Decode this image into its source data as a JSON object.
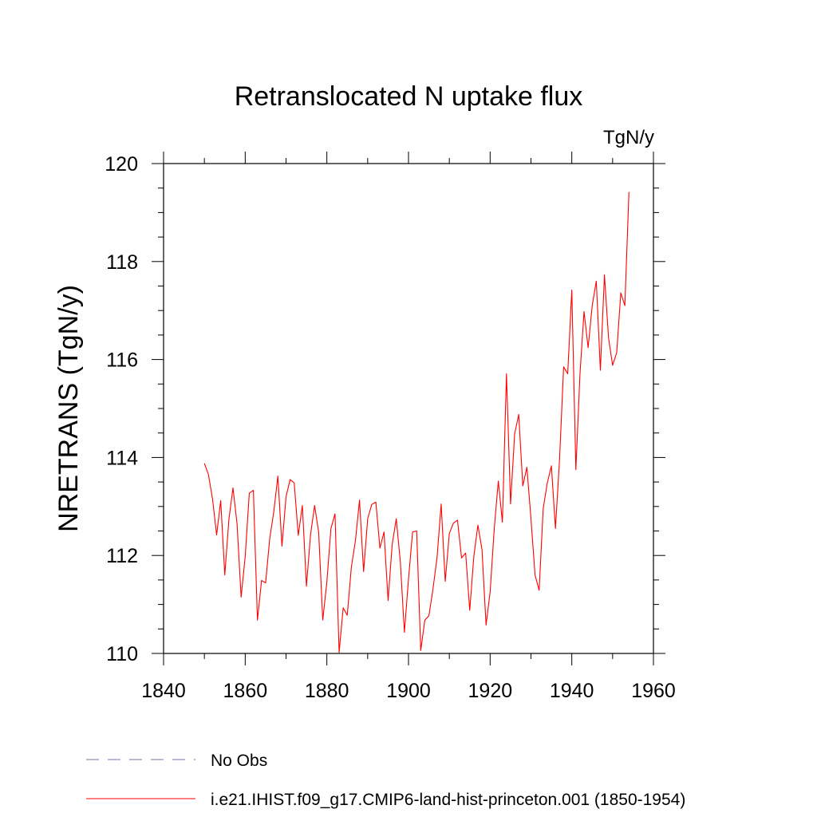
{
  "chart_data": {
    "type": "line",
    "title": "Retranslocated N uptake flux",
    "units_label": "TgN/y",
    "ylabel": "NRETRANS  (TgN/y)",
    "xlabel": "",
    "xlim": [
      1840,
      1960
    ],
    "ylim": [
      110,
      120
    ],
    "x_ticks": [
      1840,
      1860,
      1880,
      1900,
      1920,
      1940,
      1960
    ],
    "y_ticks": [
      110,
      112,
      114,
      116,
      118,
      120
    ],
    "x_tick_labels": [
      "1840",
      "1860",
      "1880",
      "1900",
      "1920",
      "1940",
      "1960"
    ],
    "y_tick_labels": [
      "110",
      "112",
      "114",
      "116",
      "118",
      "120"
    ],
    "grid": false,
    "legend_position": "bottom",
    "series": [
      {
        "name": "No Obs",
        "color": "#7a6fb0",
        "style": "dashed",
        "x": [],
        "y": []
      },
      {
        "name": "i.e21.IHIST.f09_g17.CMIP6-land-hist-princeton.001 (1850-1954)",
        "color": "#ff0000",
        "style": "solid",
        "x_start": 1850,
        "x_end": 1954,
        "y": [
          113.88,
          113.65,
          113.15,
          112.42,
          113.12,
          111.6,
          112.73,
          113.38,
          112.65,
          111.15,
          111.98,
          113.27,
          113.33,
          110.68,
          111.49,
          111.44,
          112.34,
          112.89,
          113.62,
          112.19,
          113.2,
          113.55,
          113.48,
          112.41,
          113.02,
          111.37,
          112.42,
          113.02,
          112.47,
          110.68,
          111.46,
          112.55,
          112.85,
          110.02,
          110.93,
          110.78,
          111.76,
          112.3,
          113.13,
          111.67,
          112.75,
          113.04,
          113.09,
          112.15,
          112.48,
          111.08,
          112.22,
          112.75,
          111.87,
          110.43,
          111.52,
          112.48,
          112.5,
          110.06,
          110.68,
          110.77,
          111.32,
          111.96,
          113.05,
          111.47,
          112.45,
          112.66,
          112.72,
          111.95,
          112.05,
          110.88,
          111.98,
          112.62,
          112.12,
          110.58,
          111.26,
          112.54,
          113.52,
          112.68,
          115.71,
          113.05,
          114.48,
          114.88,
          113.42,
          113.8,
          112.75,
          111.6,
          111.29,
          112.96,
          113.48,
          113.83,
          112.55,
          113.96,
          115.85,
          115.71,
          117.42,
          113.75,
          115.7,
          116.98,
          116.24,
          117.1,
          117.6,
          115.78,
          117.73,
          116.44,
          115.88,
          116.14,
          117.36,
          117.1,
          119.42
        ]
      }
    ]
  }
}
